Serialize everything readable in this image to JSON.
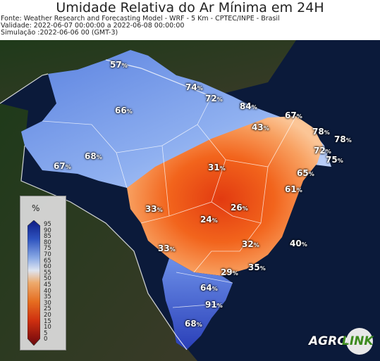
{
  "header": {
    "title": "Umidade Relativa do Ar Mínima em 24H",
    "source": "Fonte: Weather Research and Forecasting Model - WRF - 5 Km - CPTEC/INPE - Brasil",
    "validity": "Validade: 2022-06-07 00:00:00 a 2022-06-08 00:00:00",
    "simulation": "Simulação :2022-06-06 00 (GMT-3)"
  },
  "legend": {
    "title": "%",
    "ticks": [
      "95",
      "90",
      "85",
      "80",
      "75",
      "70",
      "65",
      "60",
      "55",
      "50",
      "45",
      "40",
      "35",
      "30",
      "25",
      "20",
      "15",
      "10",
      "5",
      "0"
    ]
  },
  "map_labels": [
    {
      "value": "57",
      "unit": "%"
    },
    {
      "value": "74",
      "unit": "%"
    },
    {
      "value": "72",
      "unit": "%"
    },
    {
      "value": "84",
      "unit": "%"
    },
    {
      "value": "66",
      "unit": "%"
    },
    {
      "value": "67",
      "unit": "%"
    },
    {
      "value": "43",
      "unit": "%"
    },
    {
      "value": "78",
      "unit": "%"
    },
    {
      "value": "78",
      "unit": "%"
    },
    {
      "value": "72",
      "unit": "%"
    },
    {
      "value": "75",
      "unit": "%"
    },
    {
      "value": "68",
      "unit": "%"
    },
    {
      "value": "67",
      "unit": "%"
    },
    {
      "value": "31",
      "unit": "%"
    },
    {
      "value": "65",
      "unit": "%"
    },
    {
      "value": "61",
      "unit": "%"
    },
    {
      "value": "33",
      "unit": "%"
    },
    {
      "value": "26",
      "unit": "%"
    },
    {
      "value": "24",
      "unit": "%"
    },
    {
      "value": "32",
      "unit": "%"
    },
    {
      "value": "40",
      "unit": "%"
    },
    {
      "value": "33",
      "unit": "%"
    },
    {
      "value": "29",
      "unit": "%"
    },
    {
      "value": "35",
      "unit": "%"
    },
    {
      "value": "64",
      "unit": "%"
    },
    {
      "value": "91",
      "unit": "%"
    },
    {
      "value": "68",
      "unit": "%"
    }
  ],
  "logo": {
    "text_left": "AGRO",
    "text_right": "LINK"
  },
  "colors": {
    "humid": "#3b5fd0",
    "mid": "#e8eefc",
    "dry": "#e63a12"
  }
}
